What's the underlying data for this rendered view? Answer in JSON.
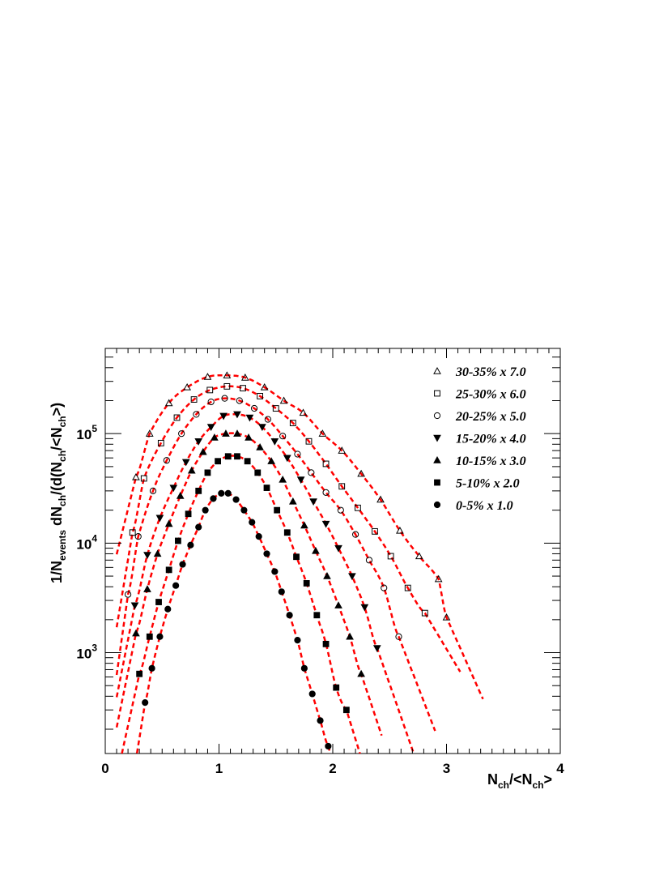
{
  "chart_data": {
    "type": "scatter",
    "xlabel": {
      "main": "N",
      "sub1": "ch",
      "mid": "/<N",
      "sub2": "ch",
      "end": ">"
    },
    "ylabel": {
      "p1": "1/N",
      "s1": "events",
      "p2": " dN",
      "s2": "ch",
      "p3": "/(d(N",
      "s3": "ch",
      "p4": "/<N",
      "s4": "ch",
      "p5": ">)"
    },
    "xlim": [
      0,
      4
    ],
    "ylim": [
      120,
      600000
    ],
    "yscale": "log",
    "x_ticks": [
      "0",
      "1",
      "2",
      "3",
      "4"
    ],
    "y_ticks": [
      {
        "base": "10",
        "exp": "3"
      },
      {
        "base": "10",
        "exp": "4"
      },
      {
        "base": "10",
        "exp": "5"
      }
    ],
    "legend_position": "top-right",
    "fit_color": "#ff0000",
    "series": [
      {
        "name": "30-35% x 7.0",
        "marker": "triangle-open",
        "scale": 7.0,
        "xend": 3.32,
        "x": [
          0.27,
          0.39,
          0.56,
          0.72,
          0.9,
          1.07,
          1.23,
          1.4,
          1.57,
          1.74,
          1.91,
          2.08,
          2.25,
          2.42,
          2.59,
          2.76,
          2.93,
          3.0
        ],
        "y": [
          40000,
          100000,
          190000,
          265000,
          330000,
          340000,
          325000,
          265000,
          200000,
          155000,
          100000,
          70000,
          43000,
          25000,
          13000,
          7600,
          4700,
          2100
        ]
      },
      {
        "name": "25-30% x 6.0",
        "marker": "square-open",
        "scale": 6.0,
        "xend": 3.12,
        "x": [
          0.24,
          0.34,
          0.49,
          0.63,
          0.78,
          0.92,
          1.07,
          1.21,
          1.36,
          1.5,
          1.65,
          1.79,
          1.94,
          2.08,
          2.22,
          2.37,
          2.51,
          2.66,
          2.81
        ],
        "y": [
          12500,
          39000,
          82000,
          140000,
          205000,
          250000,
          270000,
          260000,
          220000,
          170000,
          125000,
          85000,
          53000,
          33000,
          21000,
          12800,
          7600,
          3900,
          2300
        ]
      },
      {
        "name": "20-25% x 5.0",
        "marker": "circle-open",
        "scale": 5.0,
        "xend": 2.9,
        "x": [
          0.2,
          0.29,
          0.42,
          0.54,
          0.67,
          0.8,
          0.93,
          1.05,
          1.18,
          1.31,
          1.43,
          1.56,
          1.69,
          1.81,
          1.94,
          2.07,
          2.2,
          2.32,
          2.45,
          2.58
        ],
        "y": [
          3400,
          11500,
          30000,
          57000,
          100000,
          150000,
          195000,
          210000,
          200000,
          170000,
          135000,
          95000,
          65000,
          44000,
          29000,
          20000,
          12000,
          7000,
          3900,
          1400
        ]
      },
      {
        "name": "15-20% x 4.0",
        "marker": "triangle-down",
        "scale": 4.0,
        "xend": 2.71,
        "x": [
          0.26,
          0.37,
          0.48,
          0.6,
          0.71,
          0.82,
          0.93,
          1.04,
          1.16,
          1.27,
          1.38,
          1.49,
          1.6,
          1.72,
          1.83,
          1.94,
          2.05,
          2.17,
          2.28,
          2.39
        ],
        "y": [
          2700,
          7800,
          17000,
          32000,
          55000,
          85000,
          115000,
          145000,
          150000,
          140000,
          115000,
          85000,
          60000,
          38000,
          24000,
          15000,
          9000,
          5000,
          2600,
          1100
        ]
      },
      {
        "name": "10-15% x 3.0",
        "marker": "triangle-up",
        "scale": 3.0,
        "xend": 2.43,
        "x": [
          0.27,
          0.37,
          0.46,
          0.56,
          0.66,
          0.76,
          0.86,
          0.96,
          1.06,
          1.16,
          1.26,
          1.36,
          1.46,
          1.56,
          1.65,
          1.75,
          1.85,
          1.95,
          2.05,
          2.15,
          2.25
        ],
        "y": [
          1500,
          3800,
          8000,
          15000,
          27000,
          46000,
          68000,
          92000,
          100000,
          100000,
          92000,
          75000,
          56000,
          38000,
          24000,
          14500,
          8500,
          5000,
          2700,
          1400,
          640
        ]
      },
      {
        "name": "5-10% x 2.0",
        "marker": "square",
        "scale": 2.0,
        "xend": 2.28,
        "x": [
          0.3,
          0.39,
          0.47,
          0.56,
          0.64,
          0.73,
          0.82,
          0.9,
          0.99,
          1.08,
          1.16,
          1.25,
          1.34,
          1.42,
          1.51,
          1.6,
          1.68,
          1.77,
          1.86,
          1.94,
          2.03,
          2.12
        ],
        "y": [
          640,
          1400,
          2900,
          5700,
          10500,
          18500,
          30000,
          44000,
          56000,
          62000,
          62000,
          56000,
          44000,
          32000,
          20000,
          12500,
          7500,
          4300,
          2200,
          1200,
          480,
          300
        ]
      },
      {
        "name": "0-5% x 1.0",
        "marker": "circle",
        "scale": 1.0,
        "xend": 2.04,
        "x": [
          0.35,
          0.41,
          0.48,
          0.55,
          0.62,
          0.68,
          0.75,
          0.82,
          0.88,
          0.95,
          1.02,
          1.08,
          1.15,
          1.22,
          1.29,
          1.35,
          1.42,
          1.49,
          1.55,
          1.62,
          1.69,
          1.75,
          1.82,
          1.89,
          1.96
        ],
        "y": [
          350,
          720,
          1400,
          2500,
          4100,
          6400,
          9600,
          14000,
          20000,
          25500,
          28500,
          28500,
          25000,
          20000,
          15500,
          11500,
          8000,
          5500,
          3600,
          2200,
          1300,
          720,
          420,
          240,
          140
        ]
      }
    ]
  }
}
